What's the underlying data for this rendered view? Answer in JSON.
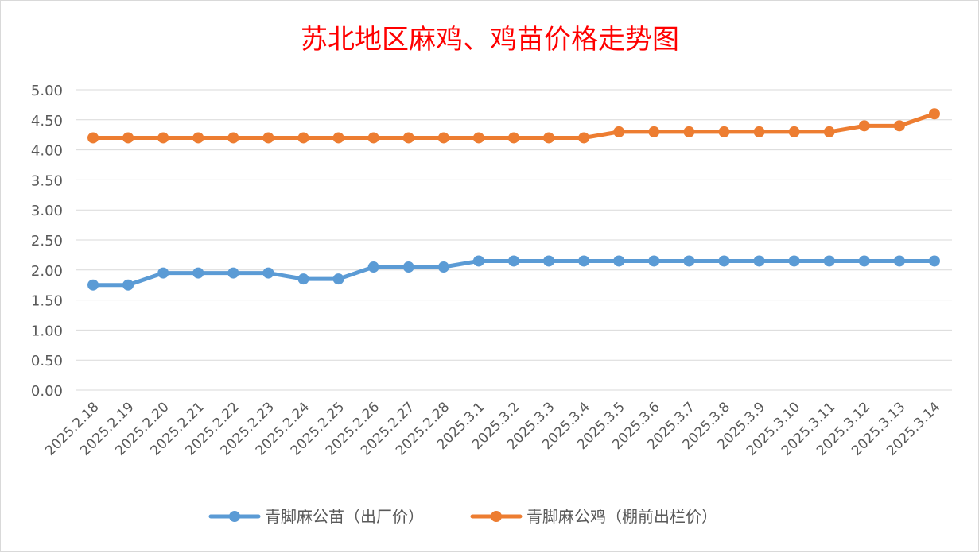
{
  "chart_data": {
    "type": "line",
    "title": "苏北地区麻鸡、鸡苗价格走势图",
    "xlabel": "",
    "ylabel": "",
    "ylim": [
      0,
      5
    ],
    "ytick_labels": [
      "0.00",
      "0.50",
      "1.00",
      "1.50",
      "2.00",
      "2.50",
      "3.00",
      "3.50",
      "4.00",
      "4.50",
      "5.00"
    ],
    "grid": true,
    "legend_position": "bottom",
    "categories": [
      "2025.2.18",
      "2025.2.19",
      "2025.2.20",
      "2025.2.21",
      "2025.2.22",
      "2025.2.23",
      "2025.2.24",
      "2025.2.25",
      "2025.2.26",
      "2025.2.27",
      "2025.2.28",
      "2025.3.1",
      "2025.3.2",
      "2025.3.3",
      "2025.3.4",
      "2025.3.5",
      "2025.3.6",
      "2025.3.7",
      "2025.3.8",
      "2025.3.9",
      "2025.3.10",
      "2025.3.11",
      "2025.3.12",
      "2025.3.13",
      "2025.3.14"
    ],
    "series": [
      {
        "name": "青脚麻公苗（出厂价）",
        "color": "#5b9bd5",
        "values": [
          1.75,
          1.75,
          1.95,
          1.95,
          1.95,
          1.95,
          1.85,
          1.85,
          2.05,
          2.05,
          2.05,
          2.15,
          2.15,
          2.15,
          2.15,
          2.15,
          2.15,
          2.15,
          2.15,
          2.15,
          2.15,
          2.15,
          2.15,
          2.15,
          2.15
        ]
      },
      {
        "name": "青脚麻公鸡（棚前出栏价）",
        "color": "#ed7d31",
        "values": [
          4.2,
          4.2,
          4.2,
          4.2,
          4.2,
          4.2,
          4.2,
          4.2,
          4.2,
          4.2,
          4.2,
          4.2,
          4.2,
          4.2,
          4.2,
          4.3,
          4.3,
          4.3,
          4.3,
          4.3,
          4.3,
          4.3,
          4.4,
          4.4,
          4.6
        ]
      }
    ]
  }
}
